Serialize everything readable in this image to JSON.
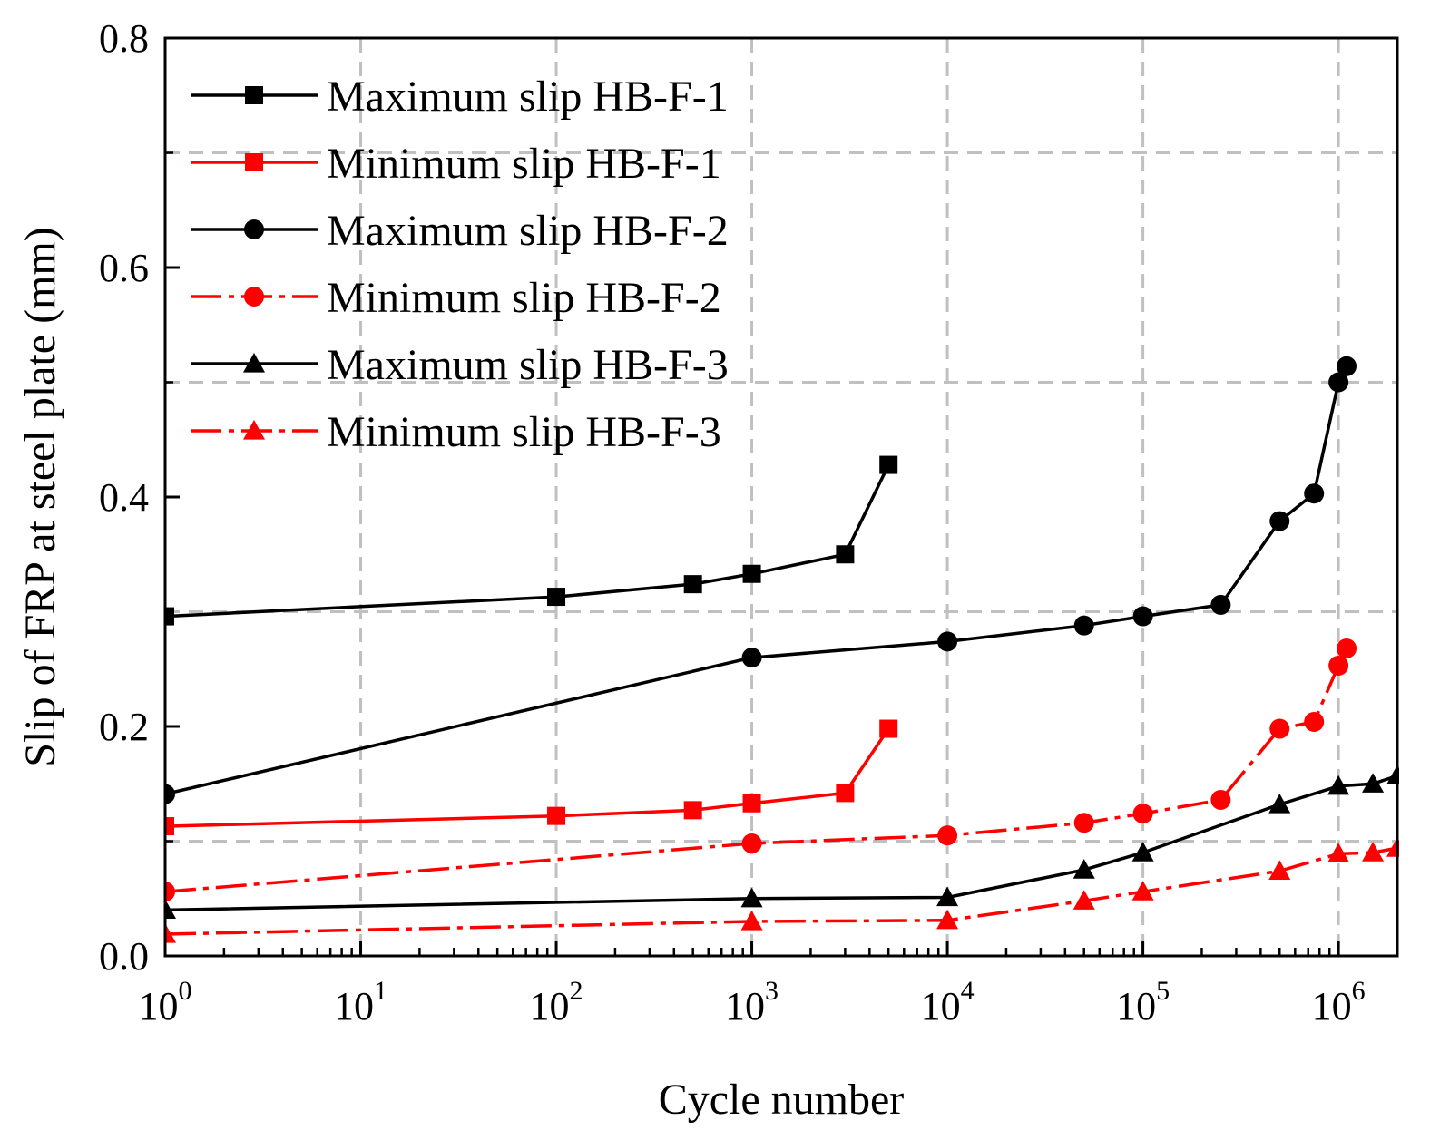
{
  "chart_data": {
    "type": "line",
    "xscale": "log",
    "xlabel": "Cycle number",
    "ylabel": "Slip of FRP at steel plate (mm)",
    "xlim": [
      1,
      2000000
    ],
    "ylim": [
      0.0,
      0.8
    ],
    "x_ticks": [
      {
        "value": 1,
        "base": "10",
        "exp": "0"
      },
      {
        "value": 10,
        "base": "10",
        "exp": "1"
      },
      {
        "value": 100,
        "base": "10",
        "exp": "2"
      },
      {
        "value": 1000,
        "base": "10",
        "exp": "3"
      },
      {
        "value": 10000,
        "base": "10",
        "exp": "4"
      },
      {
        "value": 100000,
        "base": "10",
        "exp": "5"
      },
      {
        "value": 1000000,
        "base": "10",
        "exp": "6"
      }
    ],
    "y_ticks": [
      {
        "value": 0.0,
        "label": "0.0"
      },
      {
        "value": 0.2,
        "label": "0.2"
      },
      {
        "value": 0.4,
        "label": "0.4"
      },
      {
        "value": 0.6,
        "label": "0.6"
      },
      {
        "value": 0.8,
        "label": "0.8"
      }
    ],
    "y_grid": [
      0.1,
      0.3,
      0.5,
      0.7
    ],
    "grid": true,
    "legend_position": "top-left",
    "series": [
      {
        "name": "Maximum slip HB-F-1",
        "color": "#000000",
        "marker": "square",
        "dash": "solid",
        "x": [
          1,
          100,
          500,
          1000,
          3000,
          5000
        ],
        "y": [
          0.296,
          0.313,
          0.324,
          0.333,
          0.35,
          0.428
        ]
      },
      {
        "name": "Minimum slip  HB-F-1",
        "color": "#ff0000",
        "marker": "square",
        "dash": "solid",
        "x": [
          1,
          100,
          500,
          1000,
          3000,
          5000
        ],
        "y": [
          0.113,
          0.122,
          0.127,
          0.133,
          0.142,
          0.198
        ]
      },
      {
        "name": "Maximum slip HB-F-2",
        "color": "#000000",
        "marker": "circle",
        "dash": "solid",
        "x": [
          1,
          1000,
          10000,
          50000,
          100000,
          250000,
          500000,
          750000,
          1000000,
          1100000
        ],
        "y": [
          0.141,
          0.26,
          0.274,
          0.288,
          0.296,
          0.306,
          0.379,
          0.403,
          0.5,
          0.514
        ]
      },
      {
        "name": "Minimum slip  HB-F-2",
        "color": "#ff0000",
        "marker": "circle",
        "dash": "dashdot",
        "x": [
          1,
          1000,
          10000,
          50000,
          100000,
          250000,
          500000,
          750000,
          1000000,
          1100000
        ],
        "y": [
          0.056,
          0.098,
          0.105,
          0.116,
          0.124,
          0.136,
          0.198,
          0.204,
          0.253,
          0.268
        ]
      },
      {
        "name": "Maximum slip HB-F-3",
        "color": "#000000",
        "marker": "triangle",
        "dash": "solid",
        "x": [
          1,
          1000,
          10000,
          50000,
          100000,
          500000,
          1000000,
          1500000,
          2000000
        ],
        "y": [
          0.04,
          0.05,
          0.051,
          0.075,
          0.09,
          0.132,
          0.148,
          0.15,
          0.157
        ]
      },
      {
        "name": "Minimum slip  HB-F-3",
        "color": "#ff0000",
        "marker": "triangle",
        "dash": "dashdot",
        "x": [
          1,
          1000,
          10000,
          50000,
          100000,
          500000,
          1000000,
          1500000,
          2000000
        ],
        "y": [
          0.019,
          0.03,
          0.031,
          0.048,
          0.056,
          0.074,
          0.089,
          0.09,
          0.094
        ]
      }
    ]
  }
}
